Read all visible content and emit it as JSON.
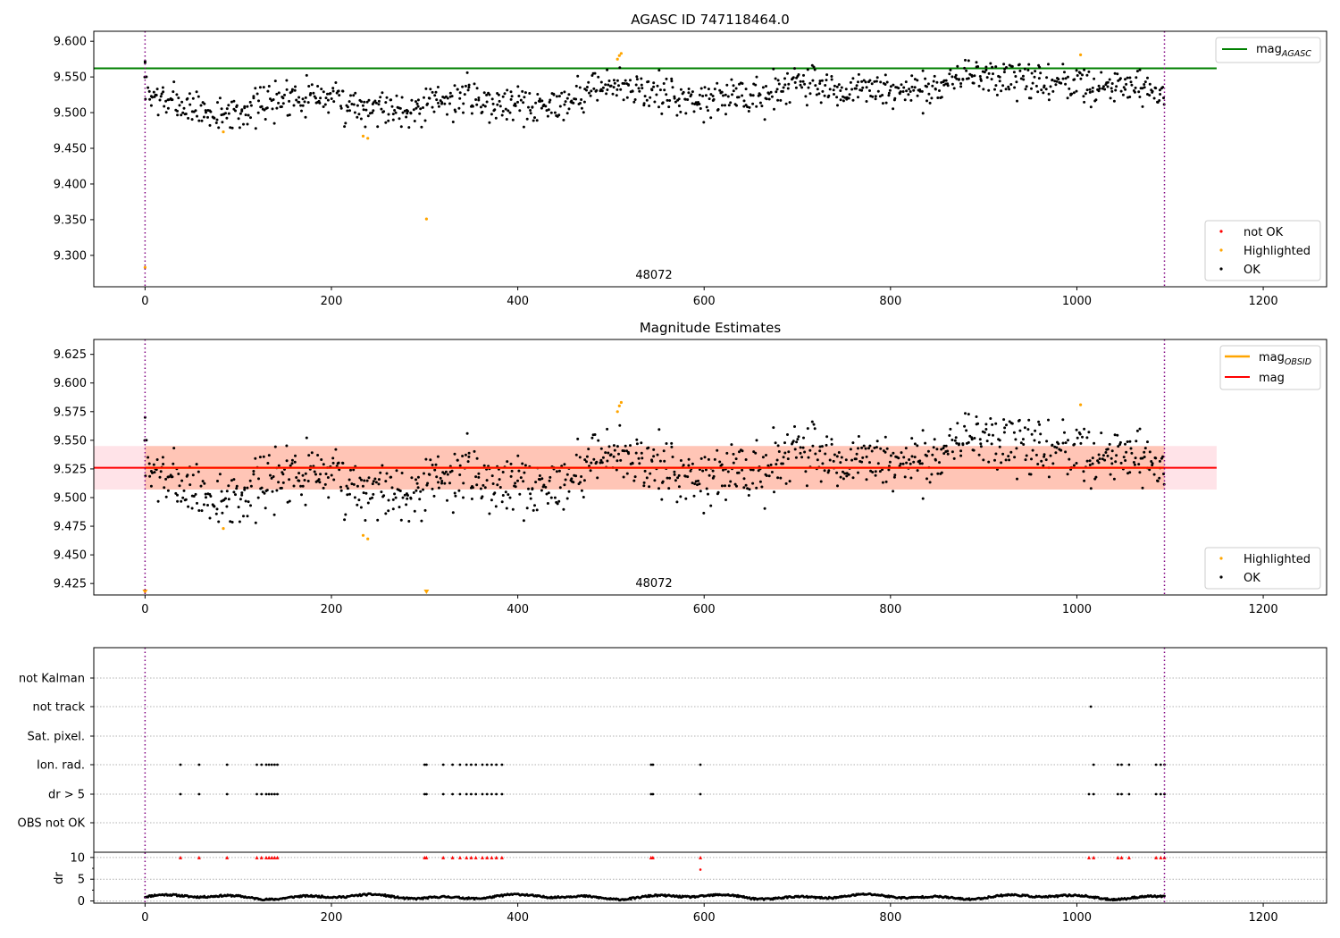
{
  "chart_data": [
    {
      "type": "scatter",
      "title": "AGASC ID 747118464.0",
      "xlim": [
        -55,
        1268
      ],
      "ylim": [
        9.256,
        9.614
      ],
      "yticks": [
        9.3,
        9.35,
        9.4,
        9.45,
        9.5,
        9.55,
        9.6
      ],
      "xticks": [
        0,
        200,
        400,
        600,
        800,
        1000,
        1200
      ],
      "annotation": "48072",
      "vlines": [
        0,
        1094
      ],
      "reference_line": {
        "name": "mag",
        "subscript": "AGASC",
        "y": 9.562,
        "x_range": [
          -55,
          1150
        ],
        "color": "#008000"
      },
      "legend_lines_position": "upper right",
      "legend_points_position": "lower right",
      "series": [
        {
          "name": "not OK",
          "color": "#ff0000",
          "points": []
        },
        {
          "name": "Highlighted",
          "color": "#ffa500",
          "points": [
            [
              0,
              9.283
            ],
            [
              84,
              9.473
            ],
            [
              234,
              9.467
            ],
            [
              239,
              9.464
            ],
            [
              302,
              9.351
            ],
            [
              507,
              9.575
            ],
            [
              509,
              9.58
            ],
            [
              511,
              9.583
            ],
            [
              1004,
              9.581
            ]
          ]
        },
        {
          "name": "OK",
          "color": "#000000",
          "series_model": {
            "start": 0,
            "end": 1094,
            "count": 1050,
            "seed": 7,
            "extra_points": [
              [
                0,
                9.57
              ],
              [
                0,
                9.572
              ]
            ]
          }
        }
      ]
    },
    {
      "type": "scatter",
      "title": "Magnitude Estimates",
      "xlim": [
        -55,
        1268
      ],
      "ylim": [
        9.415,
        9.638
      ],
      "yticks": [
        9.425,
        9.45,
        9.475,
        9.5,
        9.525,
        9.55,
        9.575,
        9.6,
        9.625
      ],
      "xticks": [
        0,
        200,
        400,
        600,
        800,
        1000,
        1200
      ],
      "annotation": "48072",
      "vlines": [
        0,
        1094
      ],
      "lines": [
        {
          "name": "mag",
          "subscript": "OBSID",
          "color": "#ffa500",
          "y": 9.526,
          "x_range": [
            0,
            1094
          ]
        },
        {
          "name": "mag",
          "subscript": "",
          "color": "#ff0000",
          "y": 9.526,
          "x_range": [
            -55,
            1150
          ]
        }
      ],
      "bands": [
        {
          "color": "#ffc0cb",
          "y_range": [
            9.507,
            9.545
          ],
          "x_range": [
            -55,
            1150
          ]
        },
        {
          "color": "#ffa07a",
          "y_range": [
            9.507,
            9.545
          ],
          "x_range": [
            0,
            1094
          ]
        }
      ],
      "series": [
        {
          "name": "Highlighted",
          "color": "#ffa500",
          "points": [
            [
              84,
              9.473
            ],
            [
              234,
              9.467
            ],
            [
              239,
              9.464
            ],
            [
              507,
              9.575
            ],
            [
              509,
              9.58
            ],
            [
              511,
              9.583
            ],
            [
              1004,
              9.581
            ]
          ],
          "below_range_markers": [
            0,
            302
          ]
        },
        {
          "name": "OK",
          "color": "#000000",
          "series_model": {
            "start": 0,
            "end": 1094,
            "count": 1050,
            "seed": 7,
            "extra_points": [
              [
                0,
                9.57
              ]
            ]
          }
        }
      ]
    },
    {
      "type": "scatter",
      "title": "",
      "xlim": [
        -55,
        1268
      ],
      "xticks": [
        0,
        200,
        400,
        600,
        800,
        1000,
        1200
      ],
      "vlines": [
        0,
        1094
      ],
      "flag_categories": [
        "not Kalman",
        "not track",
        "Sat. pixel.",
        "Ion. rad.",
        "dr > 5",
        "OBS not OK"
      ],
      "flags": {
        "not Kalman": [],
        "not track": [
          1015
        ],
        "Sat. pixel.": [],
        "Ion. rad.": [
          38,
          58,
          88,
          120,
          125,
          130,
          133,
          136,
          139,
          142,
          300,
          302,
          320,
          330,
          338,
          345,
          350,
          355,
          362,
          367,
          372,
          377,
          383,
          543,
          545,
          596,
          1018,
          1044,
          1048,
          1056,
          1085,
          1090,
          1094
        ],
        "dr > 5": [
          38,
          58,
          88,
          120,
          125,
          130,
          133,
          136,
          139,
          142,
          300,
          302,
          320,
          330,
          338,
          345,
          350,
          355,
          362,
          367,
          372,
          377,
          383,
          543,
          545,
          596,
          1013,
          1018,
          1044,
          1048,
          1056,
          1085,
          1090,
          1094
        ],
        "OBS not OK": []
      },
      "dr": {
        "ylabel": "dr",
        "ylim": [
          -0.5,
          11.2
        ],
        "yticks": [
          0,
          5,
          10
        ],
        "cap": 10,
        "capped_color": "#ff0000",
        "capped_x": [
          38,
          58,
          88,
          120,
          125,
          130,
          133,
          136,
          139,
          142,
          300,
          302,
          320,
          330,
          338,
          345,
          350,
          355,
          362,
          367,
          372,
          377,
          383,
          543,
          545,
          596,
          1013,
          1018,
          1044,
          1048,
          1056,
          1085,
          1090,
          1094
        ],
        "extra_red_points": [
          [
            596,
            7.2
          ]
        ],
        "series_model": {
          "start": 0,
          "end": 1094,
          "count": 1050,
          "seed": 11
        }
      }
    }
  ]
}
